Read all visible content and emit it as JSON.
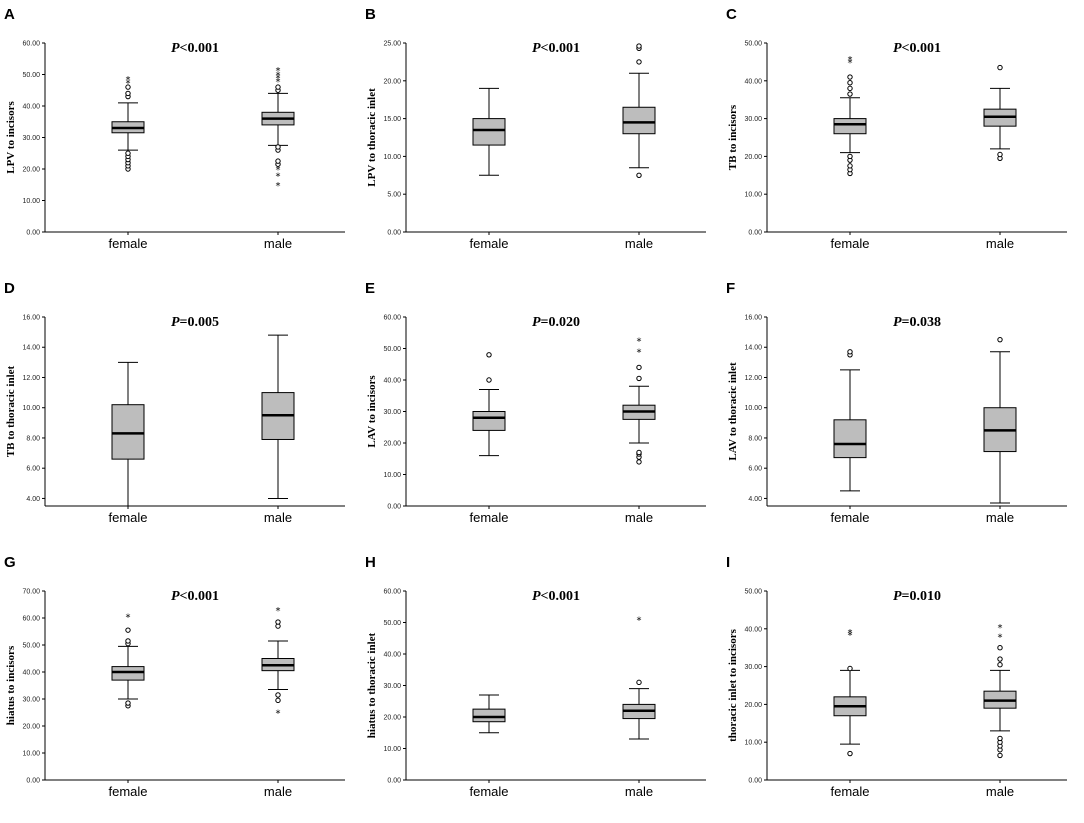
{
  "chart_data": [
    {
      "type": "box",
      "panel": "A",
      "ylabel": "LPV to incisors",
      "p_prefix": "P",
      "p_value": "<0.001",
      "ylim": [
        0,
        60
      ],
      "yticks": [
        "0.00",
        "10.00",
        "20.00",
        "30.00",
        "40.00",
        "50.00",
        "60.00"
      ],
      "categories": [
        "female",
        "male"
      ],
      "series": [
        {
          "category": "female",
          "whisker_low": 26,
          "q1": 31.5,
          "median": 33,
          "q3": 35,
          "whisker_high": 41,
          "outliers": [
            20,
            21,
            22,
            23,
            24,
            25,
            43,
            44,
            46
          ],
          "extremes": [
            47.5,
            48.5
          ]
        },
        {
          "category": "male",
          "whisker_low": 27.5,
          "q1": 34,
          "median": 36,
          "q3": 38,
          "whisker_high": 44,
          "outliers": [
            21.5,
            22.5,
            26,
            27,
            45,
            46
          ],
          "extremes": [
            15,
            18,
            20,
            48,
            49,
            50,
            51.5
          ]
        }
      ]
    },
    {
      "type": "box",
      "panel": "B",
      "ylabel": "LPV to thoracic inlet",
      "p_prefix": "P",
      "p_value": "<0.001",
      "ylim": [
        0,
        25
      ],
      "yticks": [
        "0.00",
        "5.00",
        "10.00",
        "15.00",
        "20.00",
        "25.00"
      ],
      "categories": [
        "female",
        "male"
      ],
      "series": [
        {
          "category": "female",
          "whisker_low": 7.5,
          "q1": 11.5,
          "median": 13.5,
          "q3": 15,
          "whisker_high": 19,
          "outliers": [],
          "extremes": []
        },
        {
          "category": "male",
          "whisker_low": 8.5,
          "q1": 13,
          "median": 14.5,
          "q3": 16.5,
          "whisker_high": 21,
          "outliers": [
            7.5,
            22.5,
            24.3,
            24.6
          ],
          "extremes": []
        }
      ]
    },
    {
      "type": "box",
      "panel": "C",
      "ylabel": "TB to incisors",
      "p_prefix": "P",
      "p_value": "<0.001",
      "ylim": [
        0,
        50
      ],
      "yticks": [
        "0.00",
        "10.00",
        "20.00",
        "30.00",
        "40.00",
        "50.00"
      ],
      "categories": [
        "female",
        "male"
      ],
      "series": [
        {
          "category": "female",
          "whisker_low": 21,
          "q1": 26,
          "median": 28.5,
          "q3": 30,
          "whisker_high": 35.5,
          "outliers": [
            15.5,
            16.5,
            17.5,
            19,
            20,
            36.5,
            38,
            39.5,
            41
          ],
          "extremes": [
            45,
            45.8
          ]
        },
        {
          "category": "male",
          "whisker_low": 22,
          "q1": 28,
          "median": 30.5,
          "q3": 32.5,
          "whisker_high": 38,
          "outliers": [
            19.5,
            20.5,
            43.5
          ],
          "extremes": []
        }
      ]
    },
    {
      "type": "box",
      "panel": "D",
      "ylabel": "TB to thoracic inlet",
      "p_prefix": "P",
      "p_value": "=0.005",
      "ylim": [
        3.5,
        16
      ],
      "yticks": [
        "4.00",
        "6.00",
        "8.00",
        "10.00",
        "12.00",
        "14.00",
        "16.00"
      ],
      "categories": [
        "female",
        "male"
      ],
      "series": [
        {
          "category": "female",
          "whisker_low": 3.5,
          "q1": 6.6,
          "median": 8.3,
          "q3": 10.2,
          "whisker_high": 13,
          "outliers": [],
          "extremes": []
        },
        {
          "category": "male",
          "whisker_low": 4,
          "q1": 7.9,
          "median": 9.5,
          "q3": 11,
          "whisker_high": 14.8,
          "outliers": [],
          "extremes": []
        }
      ]
    },
    {
      "type": "box",
      "panel": "E",
      "ylabel": "LAV to incisors",
      "p_prefix": "P",
      "p_value": "=0.020",
      "ylim": [
        0,
        60
      ],
      "yticks": [
        "0.00",
        "10.00",
        "20.00",
        "30.00",
        "40.00",
        "50.00",
        "60.00"
      ],
      "categories": [
        "female",
        "male"
      ],
      "series": [
        {
          "category": "female",
          "whisker_low": 16,
          "q1": 24,
          "median": 28,
          "q3": 30,
          "whisker_high": 37,
          "outliers": [
            40,
            48
          ],
          "extremes": []
        },
        {
          "category": "male",
          "whisker_low": 20,
          "q1": 27.5,
          "median": 30,
          "q3": 32,
          "whisker_high": 38,
          "outliers": [
            14,
            15.5,
            16.5,
            17,
            40.5,
            44
          ],
          "extremes": [
            49,
            52.5
          ]
        }
      ]
    },
    {
      "type": "box",
      "panel": "F",
      "ylabel": "LAV to thoracic inlet",
      "p_prefix": "P",
      "p_value": "=0.038",
      "ylim": [
        3.5,
        16
      ],
      "yticks": [
        "4.00",
        "6.00",
        "8.00",
        "10.00",
        "12.00",
        "14.00",
        "16.00"
      ],
      "categories": [
        "female",
        "male"
      ],
      "series": [
        {
          "category": "female",
          "whisker_low": 4.5,
          "q1": 6.7,
          "median": 7.6,
          "q3": 9.2,
          "whisker_high": 12.5,
          "outliers": [
            13.5,
            13.7
          ],
          "extremes": []
        },
        {
          "category": "male",
          "whisker_low": 3.7,
          "q1": 7.1,
          "median": 8.5,
          "q3": 10,
          "whisker_high": 13.7,
          "outliers": [
            14.5
          ],
          "extremes": []
        }
      ]
    },
    {
      "type": "box",
      "panel": "G",
      "ylabel": "hiatus  to incisors",
      "p_prefix": "P",
      "p_value": "<0.001",
      "ylim": [
        0,
        70
      ],
      "yticks": [
        "0.00",
        "10.00",
        "20.00",
        "30.00",
        "40.00",
        "50.00",
        "60.00",
        "70.00"
      ],
      "categories": [
        "female",
        "male"
      ],
      "series": [
        {
          "category": "female",
          "whisker_low": 30,
          "q1": 37,
          "median": 40,
          "q3": 42,
          "whisker_high": 49.5,
          "outliers": [
            27.5,
            28.5,
            50.5,
            51.5,
            55.5
          ],
          "extremes": [
            60.5
          ]
        },
        {
          "category": "male",
          "whisker_low": 33.5,
          "q1": 40.5,
          "median": 42.5,
          "q3": 45,
          "whisker_high": 51.5,
          "outliers": [
            29.5,
            31.5,
            57,
            58.5
          ],
          "extremes": [
            25,
            63
          ]
        }
      ]
    },
    {
      "type": "box",
      "panel": "H",
      "ylabel": "hiatus to thoracic inlet",
      "p_prefix": "P",
      "p_value": "<0.001",
      "ylim": [
        0,
        60
      ],
      "yticks": [
        "0.00",
        "10.00",
        "20.00",
        "30.00",
        "40.00",
        "50.00",
        "60.00"
      ],
      "categories": [
        "female",
        "male"
      ],
      "series": [
        {
          "category": "female",
          "whisker_low": 15,
          "q1": 18.5,
          "median": 20,
          "q3": 22.5,
          "whisker_high": 27,
          "outliers": [],
          "extremes": []
        },
        {
          "category": "male",
          "whisker_low": 13,
          "q1": 19.5,
          "median": 22,
          "q3": 24,
          "whisker_high": 29,
          "outliers": [
            31
          ],
          "extremes": [
            51
          ]
        }
      ]
    },
    {
      "type": "box",
      "panel": "I",
      "ylabel": "thoracic inlet to incisors",
      "p_prefix": "P",
      "p_value": "=0.010",
      "ylim": [
        0,
        50
      ],
      "yticks": [
        "0.00",
        "10.00",
        "20.00",
        "30.00",
        "40.00",
        "50.00"
      ],
      "categories": [
        "female",
        "male"
      ],
      "series": [
        {
          "category": "female",
          "whisker_low": 9.5,
          "q1": 17,
          "median": 19.5,
          "q3": 22,
          "whisker_high": 29,
          "outliers": [
            7,
            29.5
          ],
          "extremes": [
            38.5,
            39.2
          ]
        },
        {
          "category": "male",
          "whisker_low": 13,
          "q1": 19,
          "median": 21,
          "q3": 23.5,
          "whisker_high": 29,
          "outliers": [
            6.5,
            8,
            9,
            10,
            11,
            30.5,
            32,
            35
          ],
          "extremes": [
            38,
            40.5
          ]
        }
      ]
    }
  ]
}
